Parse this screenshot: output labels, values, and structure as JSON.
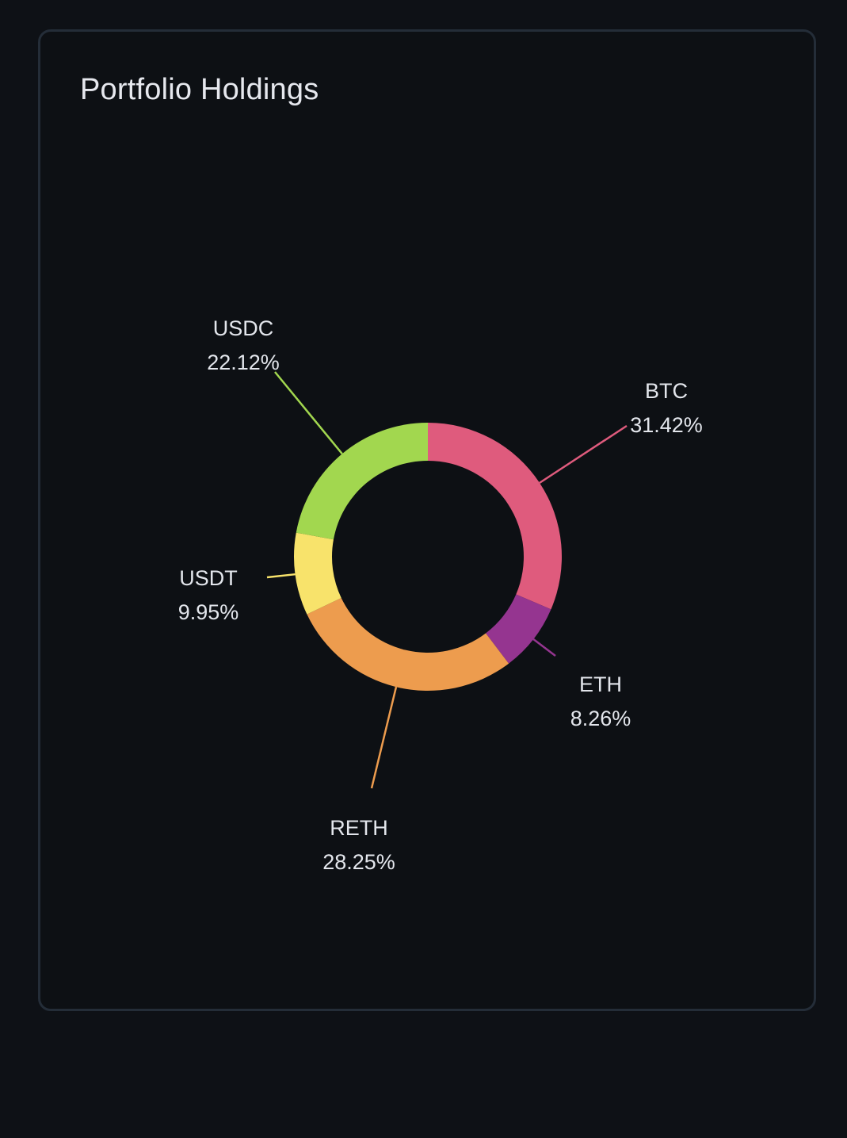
{
  "card": {
    "title": "Portfolio Holdings"
  },
  "chart_data": {
    "type": "pie",
    "variant": "donut",
    "title": "Portfolio Holdings",
    "labels_shown": "outside-with-leader-lines",
    "legend": "none",
    "slices": [
      {
        "name": "BTC",
        "value": 31.42,
        "label": "31.42%",
        "color": "#df5b7d"
      },
      {
        "name": "ETH",
        "value": 8.26,
        "label": "8.26%",
        "color": "#953590"
      },
      {
        "name": "RETH",
        "value": 28.25,
        "label": "28.25%",
        "color": "#ed9c4e"
      },
      {
        "name": "USDT",
        "value": 9.95,
        "label": "9.95%",
        "color": "#f8e36b"
      },
      {
        "name": "USDC",
        "value": 22.12,
        "label": "22.12%",
        "color": "#a2d74f"
      }
    ]
  }
}
